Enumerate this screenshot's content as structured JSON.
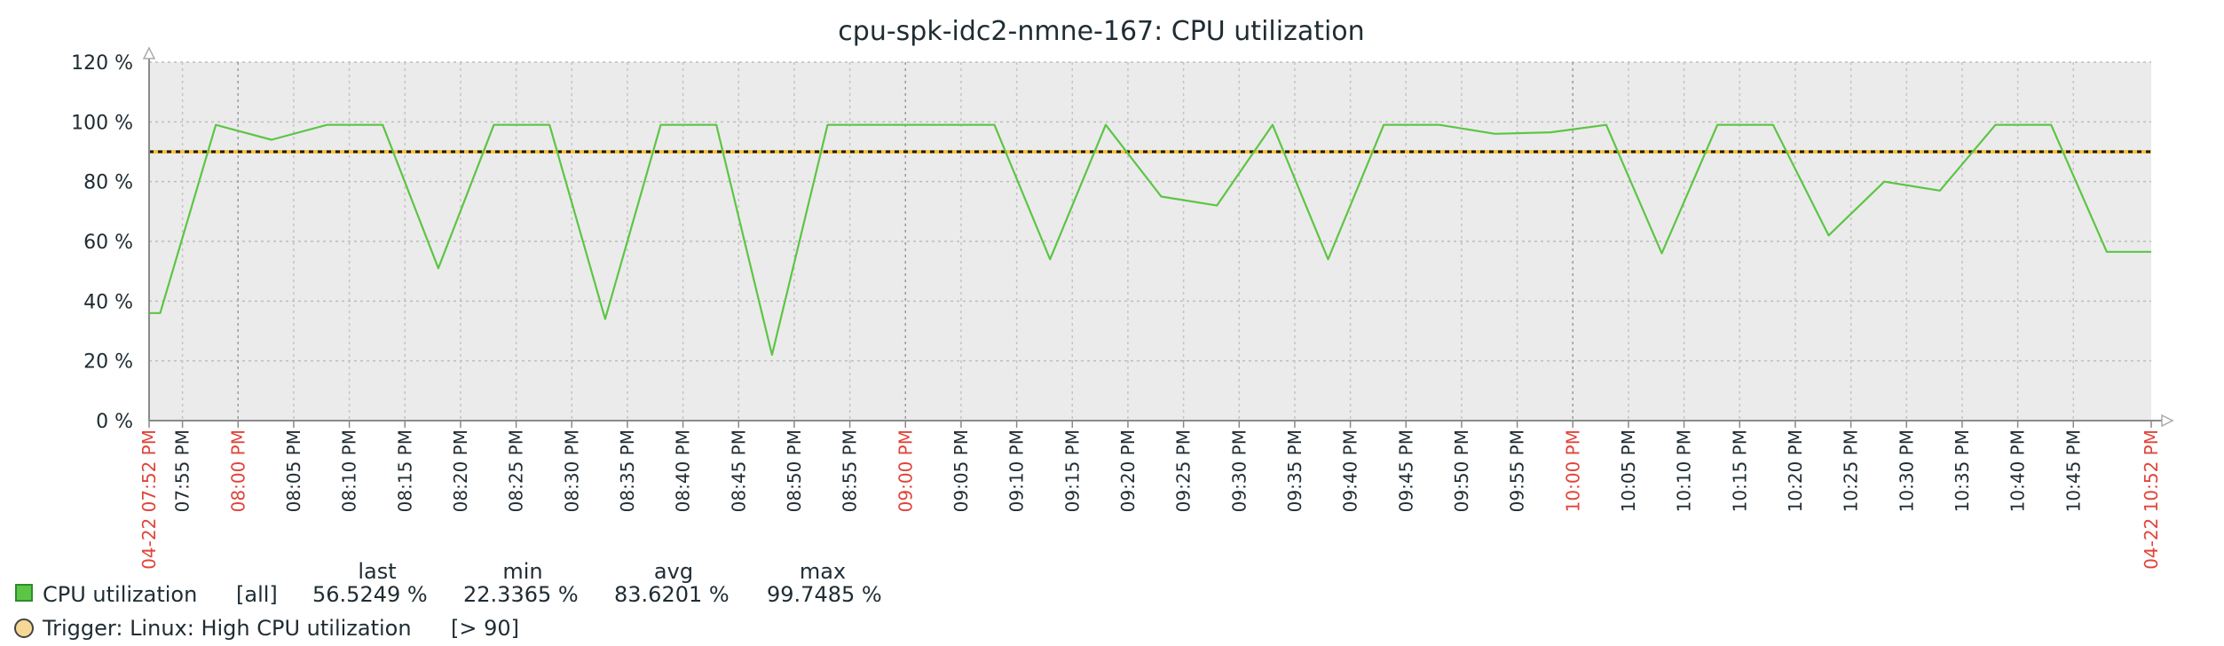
{
  "chart_data": {
    "type": "line",
    "title": "cpu-spk-idc2-nmne-167: CPU utilization",
    "y_unit": "%",
    "ylim": [
      0,
      120
    ],
    "y_ticks": [
      "120 %",
      "100 %",
      "80 %",
      "60 %",
      "40 %",
      "20 %",
      "0 %"
    ],
    "y_tick_values": [
      120,
      100,
      80,
      60,
      40,
      20,
      0
    ],
    "x_range": [
      "2024-04-22 19:52",
      "2024-04-22 22:52"
    ],
    "x_ticks": [
      {
        "label": "04-22 07:52 PM",
        "minute": 0,
        "highlight": true
      },
      {
        "label": "07:55 PM",
        "minute": 3,
        "highlight": false
      },
      {
        "label": "08:00 PM",
        "minute": 8,
        "highlight": true
      },
      {
        "label": "08:05 PM",
        "minute": 13,
        "highlight": false
      },
      {
        "label": "08:10 PM",
        "minute": 18,
        "highlight": false
      },
      {
        "label": "08:15 PM",
        "minute": 23,
        "highlight": false
      },
      {
        "label": "08:20 PM",
        "minute": 28,
        "highlight": false
      },
      {
        "label": "08:25 PM",
        "minute": 33,
        "highlight": false
      },
      {
        "label": "08:30 PM",
        "minute": 38,
        "highlight": false
      },
      {
        "label": "08:35 PM",
        "minute": 43,
        "highlight": false
      },
      {
        "label": "08:40 PM",
        "minute": 48,
        "highlight": false
      },
      {
        "label": "08:45 PM",
        "minute": 53,
        "highlight": false
      },
      {
        "label": "08:50 PM",
        "minute": 58,
        "highlight": false
      },
      {
        "label": "08:55 PM",
        "minute": 63,
        "highlight": false
      },
      {
        "label": "09:00 PM",
        "minute": 68,
        "highlight": true
      },
      {
        "label": "09:05 PM",
        "minute": 73,
        "highlight": false
      },
      {
        "label": "09:10 PM",
        "minute": 78,
        "highlight": false
      },
      {
        "label": "09:15 PM",
        "minute": 83,
        "highlight": false
      },
      {
        "label": "09:20 PM",
        "minute": 88,
        "highlight": false
      },
      {
        "label": "09:25 PM",
        "minute": 93,
        "highlight": false
      },
      {
        "label": "09:30 PM",
        "minute": 98,
        "highlight": false
      },
      {
        "label": "09:35 PM",
        "minute": 103,
        "highlight": false
      },
      {
        "label": "09:40 PM",
        "minute": 108,
        "highlight": false
      },
      {
        "label": "09:45 PM",
        "minute": 113,
        "highlight": false
      },
      {
        "label": "09:50 PM",
        "minute": 118,
        "highlight": false
      },
      {
        "label": "09:55 PM",
        "minute": 123,
        "highlight": false
      },
      {
        "label": "10:00 PM",
        "minute": 128,
        "highlight": true
      },
      {
        "label": "10:05 PM",
        "minute": 133,
        "highlight": false
      },
      {
        "label": "10:10 PM",
        "minute": 138,
        "highlight": false
      },
      {
        "label": "10:15 PM",
        "minute": 143,
        "highlight": false
      },
      {
        "label": "10:20 PM",
        "minute": 148,
        "highlight": false
      },
      {
        "label": "10:25 PM",
        "minute": 153,
        "highlight": false
      },
      {
        "label": "10:30 PM",
        "minute": 158,
        "highlight": false
      },
      {
        "label": "10:35 PM",
        "minute": 163,
        "highlight": false
      },
      {
        "label": "10:40 PM",
        "minute": 168,
        "highlight": false
      },
      {
        "label": "10:45 PM",
        "minute": 173,
        "highlight": false
      },
      {
        "label": "04-22 10:52 PM",
        "minute": 180,
        "highlight": true
      }
    ],
    "series": [
      {
        "name": "CPU utilization",
        "color": "#5cc545",
        "points": [
          {
            "t": "07:52 PM",
            "y": 36
          },
          {
            "t": "07:53 PM",
            "y": 36
          },
          {
            "t": "07:58 PM",
            "y": 99
          },
          {
            "t": "08:03 PM",
            "y": 94
          },
          {
            "t": "08:08 PM",
            "y": 99
          },
          {
            "t": "08:13 PM",
            "y": 99
          },
          {
            "t": "08:18 PM",
            "y": 51
          },
          {
            "t": "08:23 PM",
            "y": 99
          },
          {
            "t": "08:28 PM",
            "y": 99
          },
          {
            "t": "08:33 PM",
            "y": 34
          },
          {
            "t": "08:38 PM",
            "y": 99
          },
          {
            "t": "08:43 PM",
            "y": 99
          },
          {
            "t": "08:48 PM",
            "y": 22
          },
          {
            "t": "08:53 PM",
            "y": 99
          },
          {
            "t": "08:58 PM",
            "y": 99
          },
          {
            "t": "09:03 PM",
            "y": 99
          },
          {
            "t": "09:08 PM",
            "y": 99
          },
          {
            "t": "09:13 PM",
            "y": 54
          },
          {
            "t": "09:18 PM",
            "y": 99
          },
          {
            "t": "09:23 PM",
            "y": 75
          },
          {
            "t": "09:28 PM",
            "y": 72
          },
          {
            "t": "09:33 PM",
            "y": 99
          },
          {
            "t": "09:38 PM",
            "y": 54
          },
          {
            "t": "09:43 PM",
            "y": 99
          },
          {
            "t": "09:48 PM",
            "y": 99
          },
          {
            "t": "09:53 PM",
            "y": 96
          },
          {
            "t": "09:58 PM",
            "y": 96.5
          },
          {
            "t": "10:03 PM",
            "y": 99
          },
          {
            "t": "10:08 PM",
            "y": 56
          },
          {
            "t": "10:13 PM",
            "y": 99
          },
          {
            "t": "10:18 PM",
            "y": 99
          },
          {
            "t": "10:23 PM",
            "y": 62
          },
          {
            "t": "10:28 PM",
            "y": 80
          },
          {
            "t": "10:33 PM",
            "y": 77
          },
          {
            "t": "10:38 PM",
            "y": 99
          },
          {
            "t": "10:43 PM",
            "y": 99
          },
          {
            "t": "10:48 PM",
            "y": 56.5
          },
          {
            "t": "10:52 PM",
            "y": 56.5
          }
        ]
      }
    ],
    "trigger": {
      "y": 90,
      "color": "#f6c342"
    },
    "grid": true
  },
  "legend": {
    "headers": [
      "last",
      "min",
      "avg",
      "max"
    ],
    "rows": [
      {
        "name": "CPU utilization",
        "func": "[all]",
        "last": "56.5249 %",
        "min": "22.3365 %",
        "avg": "83.6201 %",
        "max": "99.7485 %",
        "color": "#5cc545"
      }
    ],
    "trigger": {
      "label": "Trigger: Linux: High CPU utilization",
      "condition": "[> 90]"
    }
  }
}
